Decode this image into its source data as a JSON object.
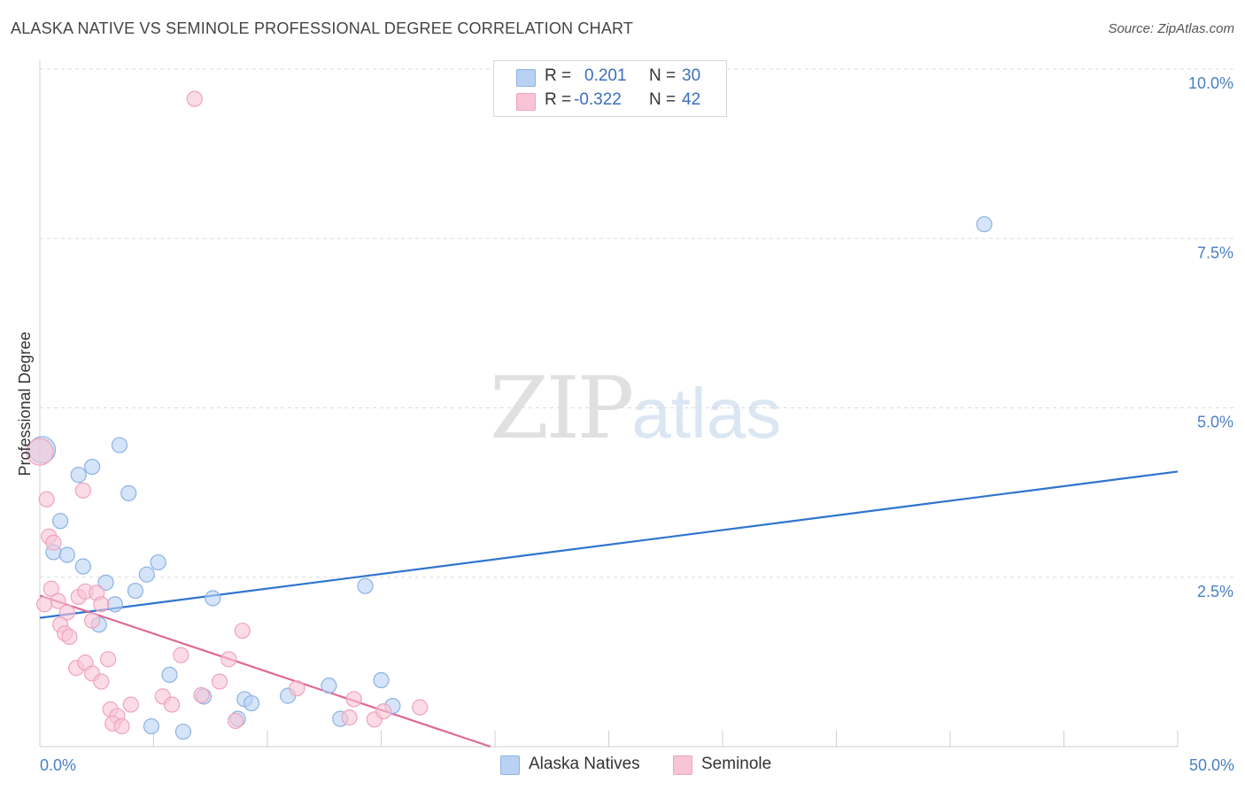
{
  "title": "ALASKA NATIVE VS SEMINOLE PROFESSIONAL DEGREE CORRELATION CHART",
  "source": "Source: ZipAtlas.com",
  "watermark": {
    "zip": "ZIP",
    "atlas": "atlas"
  },
  "legend": {
    "rows": [
      {
        "r_label": "R =",
        "r_value": "0.201",
        "n_label": "N =",
        "n_value": "30"
      },
      {
        "r_label": "R =",
        "r_value": "-0.322",
        "n_label": "N =",
        "n_value": "42"
      }
    ]
  },
  "bottom_legend": {
    "series1": "Alaska Natives",
    "series2": "Seminole"
  },
  "colors": {
    "series1_fill": "#b9d2f3",
    "series1_stroke": "#8cb2e4",
    "series1_line": "#2f74cf",
    "series2_fill": "#f8c4d6",
    "series2_stroke": "#eea3be",
    "series2_line": "#e06894",
    "tick": "#4a7fc4"
  },
  "chart_data": {
    "type": "scatter",
    "title": "ALASKA NATIVE VS SEMINOLE PROFESSIONAL DEGREE CORRELATION CHART",
    "xlabel": "",
    "ylabel": "Professional Degree",
    "xlim": [
      0,
      50
    ],
    "ylim": [
      0,
      10
    ],
    "x_tick_labels": [
      "0.0%",
      "50.0%"
    ],
    "y_ticks": [
      2.5,
      5.0,
      7.5,
      10.0
    ],
    "y_tick_labels": [
      "2.5%",
      "5.0%",
      "7.5%",
      "10.0%"
    ],
    "grid": true,
    "series": [
      {
        "name": "Alaska Natives",
        "r": 0.201,
        "n": 30,
        "trend": {
          "x0": 0,
          "y0": 1.9,
          "x1": 50,
          "y1": 4.06
        },
        "points": [
          [
            0.1,
            4.38
          ],
          [
            3.5,
            4.45
          ],
          [
            2.3,
            4.13
          ],
          [
            1.7,
            4.01
          ],
          [
            3.9,
            3.74
          ],
          [
            0.9,
            3.33
          ],
          [
            0.6,
            2.87
          ],
          [
            1.2,
            2.83
          ],
          [
            1.9,
            2.66
          ],
          [
            5.2,
            2.72
          ],
          [
            4.7,
            2.54
          ],
          [
            2.9,
            2.42
          ],
          [
            4.2,
            2.3
          ],
          [
            3.3,
            2.1
          ],
          [
            7.6,
            2.19
          ],
          [
            2.6,
            1.8
          ],
          [
            14.3,
            2.37
          ],
          [
            5.7,
            1.06
          ],
          [
            7.2,
            0.74
          ],
          [
            9.0,
            0.7
          ],
          [
            9.3,
            0.64
          ],
          [
            10.9,
            0.75
          ],
          [
            12.7,
            0.9
          ],
          [
            13.2,
            0.41
          ],
          [
            15.0,
            0.98
          ],
          [
            15.5,
            0.6
          ],
          [
            4.9,
            0.3
          ],
          [
            6.3,
            0.22
          ],
          [
            8.7,
            0.41
          ],
          [
            41.5,
            7.71
          ]
        ]
      },
      {
        "name": "Seminole",
        "r": -0.322,
        "n": 42,
        "trend": {
          "x0": 0,
          "y0": 2.23,
          "x1": 19.8,
          "y1": 0.0
        },
        "points": [
          [
            0.0,
            4.35
          ],
          [
            6.8,
            9.56
          ],
          [
            1.9,
            3.78
          ],
          [
            0.3,
            3.65
          ],
          [
            0.4,
            3.1
          ],
          [
            0.6,
            3.01
          ],
          [
            0.5,
            2.33
          ],
          [
            0.8,
            2.15
          ],
          [
            1.2,
            1.98
          ],
          [
            1.7,
            2.21
          ],
          [
            2.0,
            2.29
          ],
          [
            2.5,
            2.27
          ],
          [
            2.7,
            2.1
          ],
          [
            0.9,
            1.8
          ],
          [
            1.1,
            1.67
          ],
          [
            1.3,
            1.62
          ],
          [
            2.3,
            1.86
          ],
          [
            1.6,
            1.16
          ],
          [
            2.0,
            1.24
          ],
          [
            2.3,
            1.08
          ],
          [
            2.7,
            0.96
          ],
          [
            3.0,
            1.29
          ],
          [
            6.2,
            1.35
          ],
          [
            8.3,
            1.29
          ],
          [
            8.9,
            1.71
          ],
          [
            3.1,
            0.55
          ],
          [
            3.4,
            0.45
          ],
          [
            3.2,
            0.34
          ],
          [
            3.6,
            0.3
          ],
          [
            4.0,
            0.62
          ],
          [
            5.4,
            0.74
          ],
          [
            5.8,
            0.62
          ],
          [
            7.1,
            0.76
          ],
          [
            7.9,
            0.96
          ],
          [
            8.6,
            0.38
          ],
          [
            11.3,
            0.86
          ],
          [
            13.6,
            0.43
          ],
          [
            13.8,
            0.7
          ],
          [
            14.7,
            0.4
          ],
          [
            15.1,
            0.52
          ],
          [
            16.7,
            0.58
          ],
          [
            0.2,
            2.1
          ]
        ]
      }
    ]
  }
}
